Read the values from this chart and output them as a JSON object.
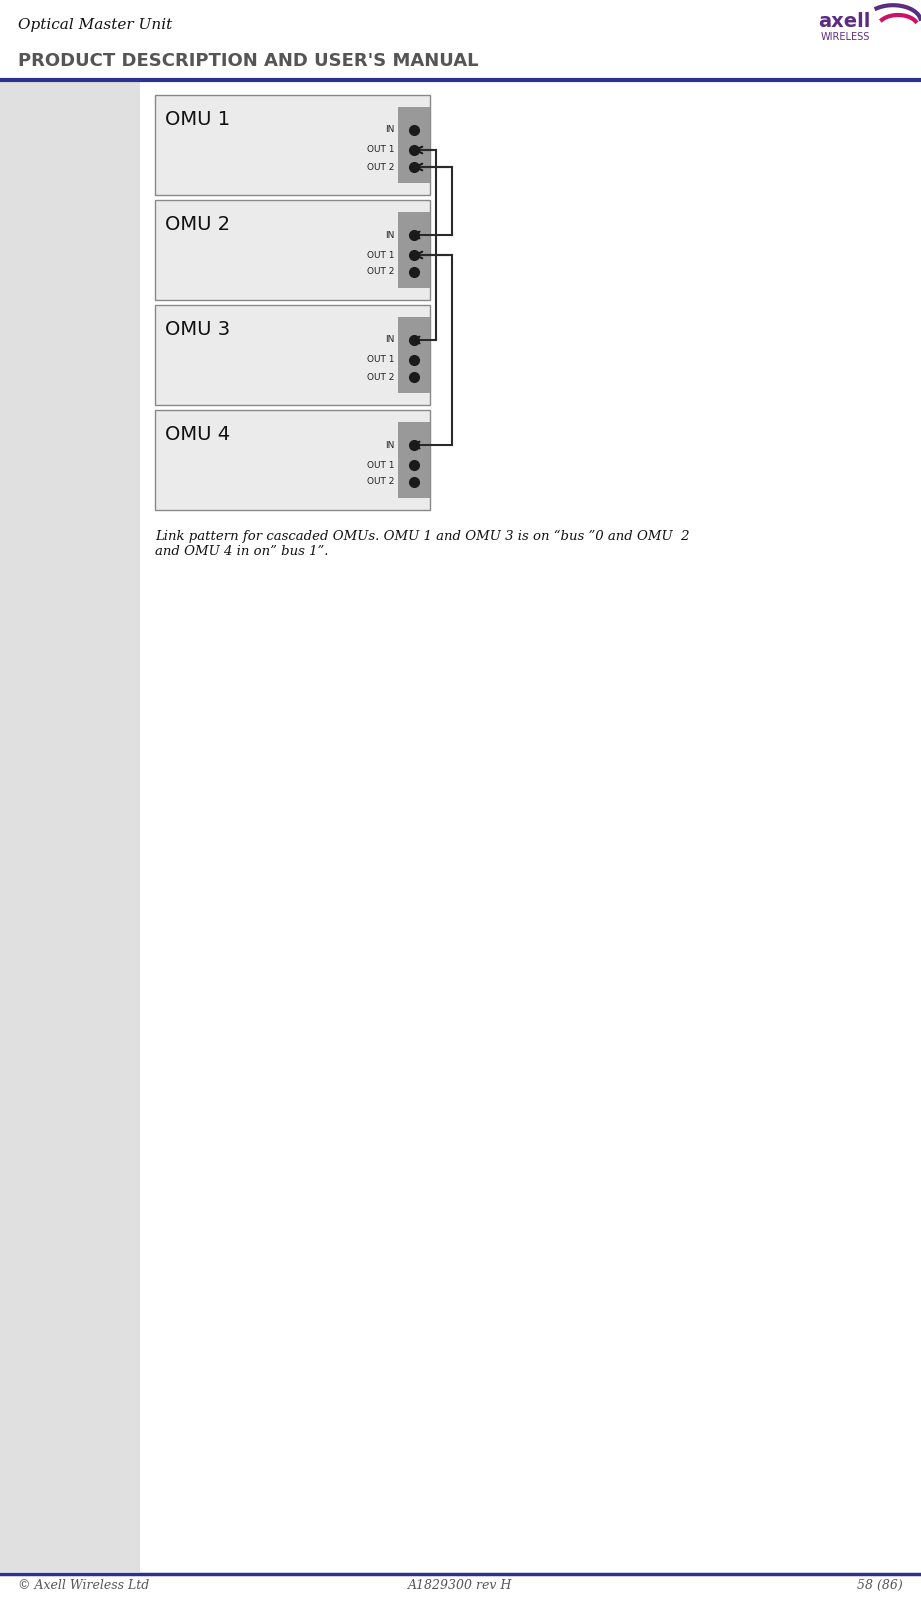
{
  "page_title": "Optical Master Unit",
  "page_subtitle": "PRODUCT DESCRIPTION AND USER'S MANUAL",
  "footer_left": "© Axell Wireless Ltd",
  "footer_center": "A1829300 rev H",
  "footer_right": "58 (86)",
  "header_line_color": "#2d3092",
  "omu_labels": [
    "OMU 1",
    "OMU 2",
    "OMU 3",
    "OMU 4"
  ],
  "port_labels": [
    "IN",
    "OUT 1",
    "OUT 2"
  ],
  "caption": "Link pattern for cascaded OMUs. OMU 1 and OMU 3 is on “bus ”0 and OMU  2\nand OMU 4 in on” bus 1”.",
  "bg_color": "#ffffff",
  "panel_bg": "#e8e8e8",
  "box_bg": "#ebebeb",
  "port_panel_color": "#999999",
  "port_dot_color": "#1a1a1a",
  "arrow_color": "#1a1a1a",
  "left_margin_color": "#dcdcdc",
  "connector_line_color": "#2a2a2a",
  "title_color": "#000000",
  "subtitle_color": "#5a5a5a",
  "footer_color": "#555555"
}
